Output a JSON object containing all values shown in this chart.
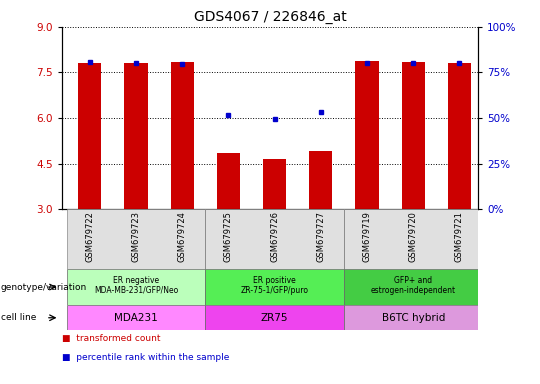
{
  "title": "GDS4067 / 226846_at",
  "samples": [
    "GSM679722",
    "GSM679723",
    "GSM679724",
    "GSM679725",
    "GSM679726",
    "GSM679727",
    "GSM679719",
    "GSM679720",
    "GSM679721"
  ],
  "bar_values": [
    7.8,
    7.82,
    7.85,
    4.85,
    4.65,
    4.92,
    7.88,
    7.85,
    7.8
  ],
  "percentile_values": [
    7.85,
    7.82,
    7.78,
    6.1,
    5.98,
    6.2,
    7.82,
    7.8,
    7.8
  ],
  "ylim_left": [
    3,
    9
  ],
  "ylim_right": [
    0,
    100
  ],
  "yticks_left": [
    3,
    4.5,
    6,
    7.5,
    9
  ],
  "yticks_right": [
    0,
    25,
    50,
    75,
    100
  ],
  "bar_color": "#cc0000",
  "dot_color": "#0000cc",
  "bar_width": 0.5,
  "groups": [
    {
      "label": "ER negative\nMDA-MB-231/GFP/Neo",
      "cell_line": "MDA231",
      "geno_color": "#bbffbb",
      "cell_color": "#ff88ff",
      "start": 0,
      "count": 3
    },
    {
      "label": "ER positive\nZR-75-1/GFP/puro",
      "cell_line": "ZR75",
      "geno_color": "#55ee55",
      "cell_color": "#ee44ee",
      "start": 3,
      "count": 3
    },
    {
      "label": "GFP+ and\nestrogen-independent",
      "cell_line": "B6TC hybrid",
      "geno_color": "#44cc44",
      "cell_color": "#dd99dd",
      "start": 6,
      "count": 3
    }
  ],
  "title_fontsize": 10,
  "left_tick_color": "#cc0000",
  "right_tick_color": "#0000cc",
  "xlim": [
    -0.6,
    8.4
  ]
}
